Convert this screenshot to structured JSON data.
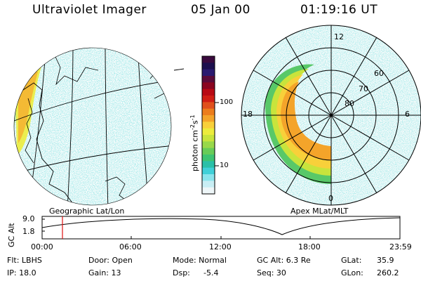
{
  "header": {
    "instrument": "Ultraviolet Imager",
    "date": "05 Jan 00",
    "time": "01:19:16 UT"
  },
  "colorbar": {
    "label_unit": "photon cm",
    "label_sup1": "-2",
    "label_s": "s",
    "label_sup2": "-1",
    "ticks": [
      "100",
      "10"
    ],
    "colors": [
      "#3a0a3e",
      "#1c0f4e",
      "#2a1a70",
      "#5a0b3a",
      "#8a0520",
      "#b80a14",
      "#d01e14",
      "#e0501c",
      "#ec7d1c",
      "#f4a42a",
      "#f8d03a",
      "#ecec3c",
      "#c8e43c",
      "#98d84a",
      "#68cc58",
      "#3ec472",
      "#2ac0a8",
      "#40d0d8",
      "#8ae4ec",
      "#c8eef4",
      "#eef6f8"
    ]
  },
  "panels": {
    "geo_label": "Geographic Lat/Lon",
    "polar_label": "Apex MLat/MLT",
    "polar_mlt": [
      "12",
      "18",
      "6",
      "0"
    ],
    "polar_mlat": [
      "60",
      "70",
      "80"
    ]
  },
  "timeline": {
    "ylabel": "GC Alt",
    "ytick_top": "9.0",
    "ytick_bottom": "1.8",
    "xticks": [
      "00:00",
      "06:00",
      "12:00",
      "18:00",
      "23:59"
    ]
  },
  "status": {
    "flt": "Flt: LBHS",
    "door": "Door: Open",
    "mode": "Mode: Normal",
    "gcalt": "GC Alt: 6.3 Re",
    "glat_label": "GLat:",
    "glat": "35.9",
    "ip": "IP: 18.0",
    "gain": "Gain: 13",
    "dsp_label": "Dsp:",
    "dsp": "-5.4",
    "seq": "Seq: 30",
    "glon_label": "GLon:",
    "glon": "260.2"
  }
}
